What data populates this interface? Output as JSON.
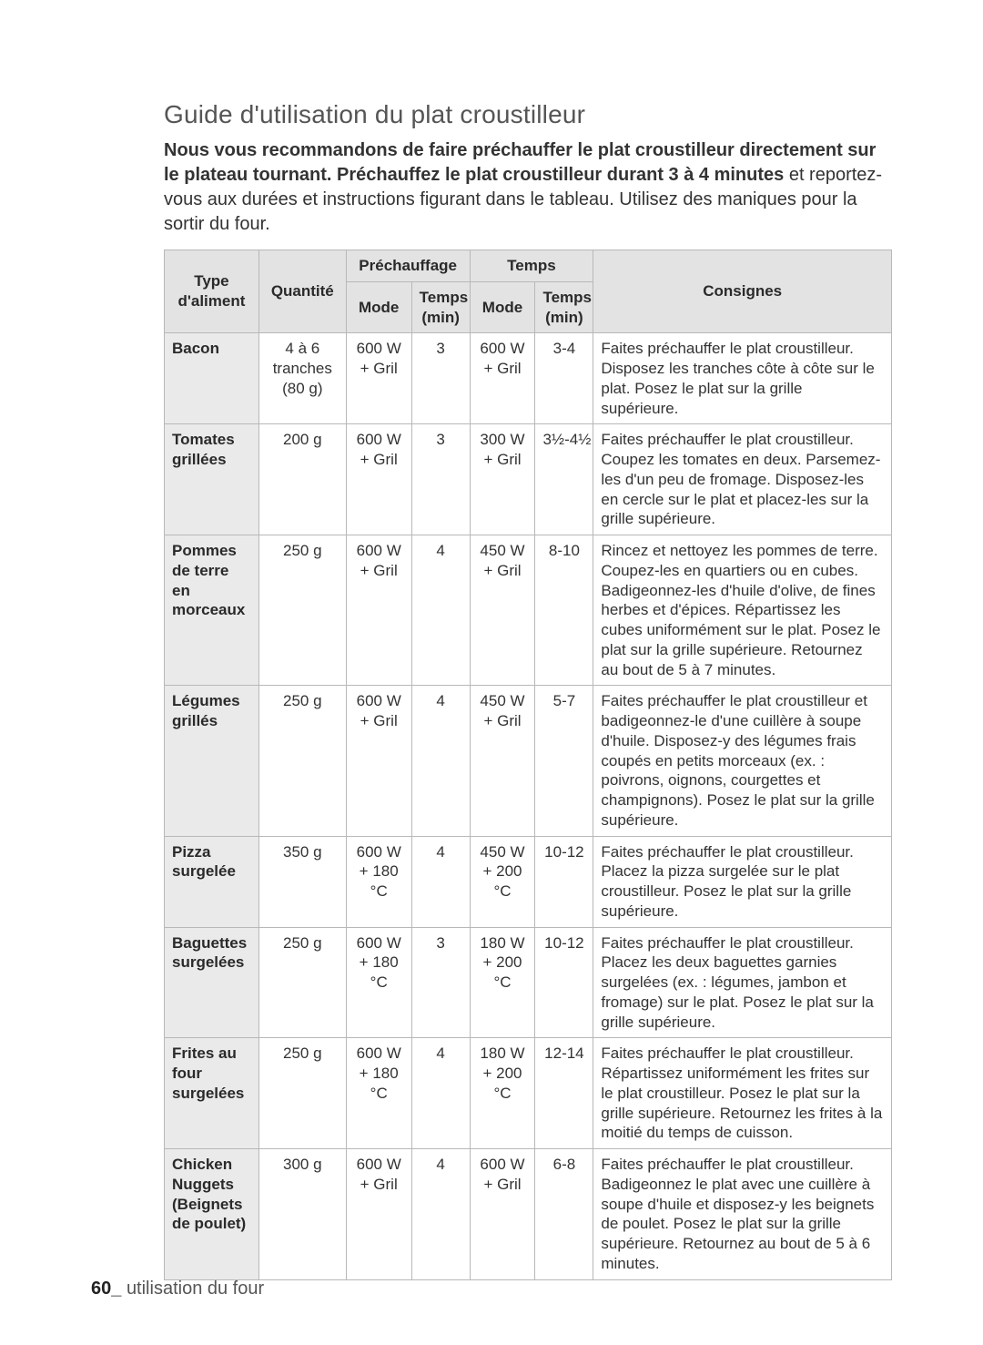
{
  "title": "Guide d'utilisation du plat croustilleur",
  "intro_bold1": "Nous vous recommandons de faire préchauffer le plat croustilleur directement sur le plateau tournant. Préchauffez le plat croustilleur durant 3 à 4 minutes",
  "intro_rest": " et reportez-vous aux durées et instructions figurant dans le tableau. Utilisez des maniques pour la sortir du four.",
  "table": {
    "headers": {
      "type": "Type d'aliment",
      "qty": "Quantité",
      "preheat": "Préchauffage",
      "time": "Temps",
      "instr": "Consignes",
      "mode": "Mode",
      "tmin": "Temps (min)"
    },
    "rows": [
      {
        "food": "Bacon",
        "qty": "4 à 6 tranches (80 g)",
        "p_mode": "600 W + Gril",
        "p_time": "3",
        "c_mode": "600 W + Gril",
        "c_time": "3-4",
        "instr": "Faites préchauffer le plat croustilleur. Disposez les tranches côte à côte sur le plat. Posez le plat sur la grille supérieure."
      },
      {
        "food": "Tomates grillées",
        "qty": "200 g",
        "p_mode": "600 W + Gril",
        "p_time": "3",
        "c_mode": "300 W + Gril",
        "c_time": "3½-4½",
        "instr": "Faites préchauffer le plat croustilleur. Coupez les tomates en deux. Parsemez-les d'un peu de fromage. Disposez-les en cercle sur le plat et placez-les sur la grille supérieure."
      },
      {
        "food": "Pommes de terre en morceaux",
        "qty": "250 g",
        "p_mode": "600 W + Gril",
        "p_time": "4",
        "c_mode": "450 W + Gril",
        "c_time": "8-10",
        "instr": "Rincez et nettoyez les pommes de terre. Coupez-les en quartiers ou en cubes. Badigeonnez-les d'huile d'olive, de fines herbes et d'épices. Répartissez les cubes uniformément sur le plat. Posez le plat sur la grille supérieure. Retournez au bout de 5 à 7 minutes."
      },
      {
        "food": "Légumes grillés",
        "qty": "250 g",
        "p_mode": "600 W + Gril",
        "p_time": "4",
        "c_mode": "450 W + Gril",
        "c_time": "5-7",
        "instr": "Faites préchauffer le plat croustilleur et badigeonnez-le d'une cuillère à soupe d'huile. Disposez-y des légumes frais coupés en petits morceaux (ex. : poivrons, oignons, courgettes et champignons). Posez le plat sur la grille supérieure."
      },
      {
        "food": "Pizza surgelée",
        "qty": "350 g",
        "p_mode": "600 W + 180 °C",
        "p_time": "4",
        "c_mode": "450 W + 200 °C",
        "c_time": "10-12",
        "instr": "Faites préchauffer le plat croustilleur. Placez la pizza surgelée sur le plat croustilleur. Posez le plat sur la grille supérieure."
      },
      {
        "food": "Baguettes surgelées",
        "qty": "250 g",
        "p_mode": "600 W + 180 °C",
        "p_time": "3",
        "c_mode": "180 W + 200 °C",
        "c_time": "10-12",
        "instr": "Faites préchauffer le plat croustilleur. Placez les deux baguettes garnies surgelées (ex. : légumes, jambon et fromage) sur le plat. Posez le plat sur la grille supérieure."
      },
      {
        "food": "Frites au four surgelées",
        "qty": "250 g",
        "p_mode": "600 W + 180 °C",
        "p_time": "4",
        "c_mode": "180 W + 200 °C",
        "c_time": "12-14",
        "instr": "Faites préchauffer le plat croustilleur. Répartissez uniformément les frites sur le plat croustilleur. Posez le plat sur la grille supérieure. Retournez les frites à la moitié du temps de cuisson."
      },
      {
        "food": "Chicken Nuggets (Beignets de poulet)",
        "qty": "300 g",
        "p_mode": "600 W + Gril",
        "p_time": "4",
        "c_mode": "600 W + Gril",
        "c_time": "6-8",
        "instr": "Faites préchauffer le plat croustilleur. Badigeonnez le plat avec une cuillère à soupe d'huile et disposez-y les beignets de poulet. Posez le plat sur la grille supérieure. Retournez au bout de 5 à 6 minutes."
      }
    ]
  },
  "footer": {
    "page": "60_",
    "section": "utilisation du four"
  }
}
